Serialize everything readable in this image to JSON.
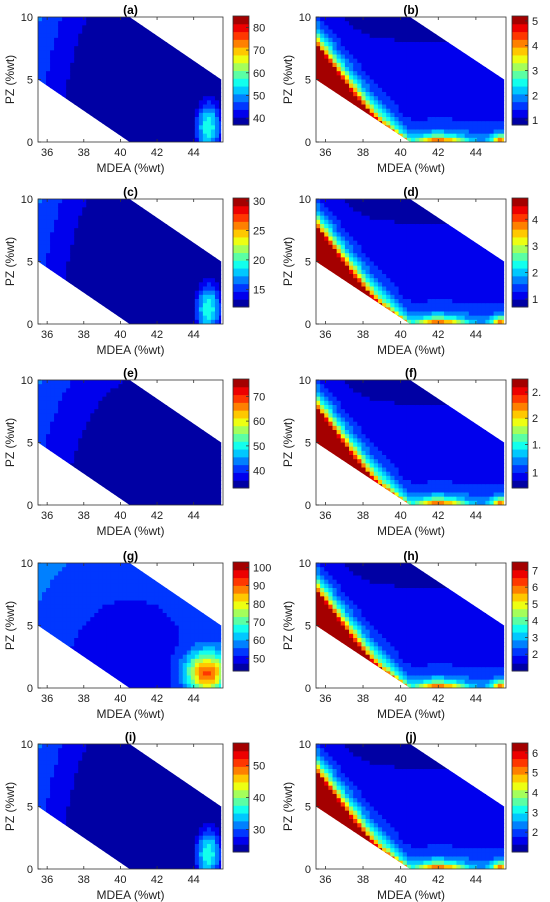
{
  "chart_data": [
    {
      "type": "heatmap",
      "title": "(a)",
      "xlabel": "MDEA (%wt)",
      "ylabel": "PZ (%wt)",
      "xlim": [
        35.5,
        45.6
      ],
      "ylim": [
        0,
        10
      ],
      "xticks": [
        "36",
        "38",
        "40",
        "42",
        "44"
      ],
      "yticks": [
        "0",
        "5",
        "10"
      ],
      "colorbar_ticks": [
        "40",
        "50",
        "60",
        "70",
        "80"
      ],
      "colorbar_range": [
        37,
        85
      ],
      "colormap": "jet",
      "pattern": "high at high PZ (top-left), minimum in centre, secondary rise at bottom-right"
    },
    {
      "type": "heatmap",
      "title": "(b)",
      "xlabel": "MDEA (%wt)",
      "ylabel": "PZ (%wt)",
      "xlim": [
        35.5,
        45.6
      ],
      "ylim": [
        0,
        10
      ],
      "xticks": [
        "36",
        "38",
        "40",
        "42",
        "44"
      ],
      "yticks": [
        "0",
        "5",
        "10"
      ],
      "colorbar_ticks": [
        "1",
        "2",
        "3",
        "4",
        "5"
      ],
      "colorbar_range": [
        0.8,
        5.2
      ],
      "colormap": "jet",
      "pattern": "low almost everywhere, maximum along bottom edge near PZ=0"
    },
    {
      "type": "heatmap",
      "title": "(c)",
      "xlabel": "MDEA (%wt)",
      "ylabel": "PZ (%wt)",
      "xlim": [
        35.5,
        45.6
      ],
      "ylim": [
        0,
        10
      ],
      "xticks": [
        "36",
        "38",
        "40",
        "42",
        "44"
      ],
      "yticks": [
        "0",
        "5",
        "10"
      ],
      "colorbar_ticks": [
        "15",
        "20",
        "25",
        "30"
      ],
      "colorbar_range": [
        12,
        30.5
      ],
      "colormap": "jet",
      "pattern": "high at high PZ (top-left), minimum in centre, secondary rise at bottom-right"
    },
    {
      "type": "heatmap",
      "title": "(d)",
      "xlabel": "MDEA (%wt)",
      "ylabel": "PZ (%wt)",
      "xlim": [
        35.5,
        45.6
      ],
      "ylim": [
        0,
        10
      ],
      "xticks": [
        "36",
        "38",
        "40",
        "42",
        "44"
      ],
      "yticks": [
        "0",
        "5",
        "10"
      ],
      "colorbar_ticks": [
        "1",
        "2",
        "3",
        "4"
      ],
      "colorbar_range": [
        0.7,
        4.8
      ],
      "colormap": "jet",
      "pattern": "low almost everywhere, maximum along bottom edge near PZ=0"
    },
    {
      "type": "heatmap",
      "title": "(e)",
      "xlabel": "MDEA (%wt)",
      "ylabel": "PZ (%wt)",
      "xlim": [
        35.5,
        45.6
      ],
      "ylim": [
        0,
        10
      ],
      "xticks": [
        "36",
        "38",
        "40",
        "42",
        "44"
      ],
      "yticks": [
        "0",
        "5",
        "10"
      ],
      "colorbar_ticks": [
        "40",
        "50",
        "60",
        "70"
      ],
      "colorbar_range": [
        33,
        77
      ],
      "colormap": "jet",
      "pattern": "high at high PZ (top-left), broad minimum lower-centre"
    },
    {
      "type": "heatmap",
      "title": "(f)",
      "xlabel": "MDEA (%wt)",
      "ylabel": "PZ (%wt)",
      "xlim": [
        35.5,
        45.6
      ],
      "ylim": [
        0,
        10
      ],
      "xticks": [
        "36",
        "38",
        "40",
        "42",
        "44"
      ],
      "yticks": [
        "0",
        "5",
        "10"
      ],
      "colorbar_ticks": [
        "2.",
        "2",
        "1.",
        "1"
      ],
      "colorbar_range": [
        0.6,
        2.8
      ],
      "colormap": "jet",
      "pattern": "low almost everywhere, maximum along bottom edge near PZ=0"
    },
    {
      "type": "heatmap",
      "title": "(g)",
      "xlabel": "MDEA (%wt)",
      "ylabel": "PZ (%wt)",
      "xlim": [
        35.5,
        45.6
      ],
      "ylim": [
        0,
        10
      ],
      "xticks": [
        "36",
        "38",
        "40",
        "42",
        "44"
      ],
      "yticks": [
        "0",
        "5",
        "10"
      ],
      "colorbar_ticks": [
        "50",
        "60",
        "70",
        "80",
        "90",
        "100"
      ],
      "colorbar_range": [
        43,
        103
      ],
      "colormap": "jet",
      "pattern": "high at high PZ (top-left) and hot spot at bottom-right near MDEA 45"
    },
    {
      "type": "heatmap",
      "title": "(h)",
      "xlabel": "MDEA (%wt)",
      "ylabel": "PZ (%wt)",
      "xlim": [
        35.5,
        45.6
      ],
      "ylim": [
        0,
        10
      ],
      "xticks": [
        "36",
        "38",
        "40",
        "42",
        "44"
      ],
      "yticks": [
        "0",
        "5",
        "10"
      ],
      "colorbar_ticks": [
        "2",
        "3",
        "4",
        "5",
        "6",
        "7"
      ],
      "colorbar_range": [
        1,
        7.5
      ],
      "colormap": "jet",
      "pattern": "low almost everywhere, maximum along bottom edge near PZ=0"
    },
    {
      "type": "heatmap",
      "title": "(i)",
      "xlabel": "MDEA (%wt)",
      "ylabel": "PZ (%wt)",
      "xlim": [
        35.5,
        45.6
      ],
      "ylim": [
        0,
        10
      ],
      "xticks": [
        "36",
        "38",
        "40",
        "42",
        "44"
      ],
      "yticks": [
        "0",
        "5",
        "10"
      ],
      "colorbar_ticks": [
        "30",
        "40",
        "50"
      ],
      "colorbar_range": [
        23,
        57
      ],
      "colormap": "jet",
      "pattern": "high at high PZ (top-left), minimum in centre, secondary rise at bottom-right"
    },
    {
      "type": "heatmap",
      "title": "(j)",
      "xlabel": "MDEA (%wt)",
      "ylabel": "PZ (%wt)",
      "xlim": [
        35.5,
        45.6
      ],
      "ylim": [
        0,
        10
      ],
      "xticks": [
        "36",
        "38",
        "40",
        "42",
        "44"
      ],
      "yticks": [
        "0",
        "5",
        "10"
      ],
      "colorbar_ticks": [
        "2",
        "3",
        "4",
        "5",
        "6"
      ],
      "colorbar_range": [
        1,
        6.5
      ],
      "colormap": "jet",
      "pattern": "low almost everywhere, maximum along bottom edge near PZ=0"
    }
  ]
}
